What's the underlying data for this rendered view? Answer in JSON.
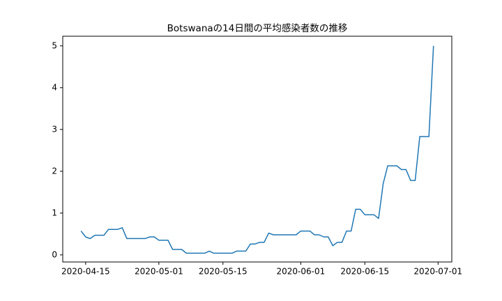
{
  "chart_data": {
    "type": "line",
    "title": "Botswanaの14日間の平均感染者数の推移",
    "x": [
      "2020-04-14",
      "2020-04-15",
      "2020-04-16",
      "2020-04-17",
      "2020-04-18",
      "2020-04-19",
      "2020-04-20",
      "2020-04-21",
      "2020-04-22",
      "2020-04-23",
      "2020-04-24",
      "2020-04-25",
      "2020-04-26",
      "2020-04-27",
      "2020-04-28",
      "2020-04-29",
      "2020-04-30",
      "2020-05-01",
      "2020-05-02",
      "2020-05-03",
      "2020-05-04",
      "2020-05-05",
      "2020-05-06",
      "2020-05-07",
      "2020-05-08",
      "2020-05-09",
      "2020-05-10",
      "2020-05-11",
      "2020-05-12",
      "2020-05-13",
      "2020-05-14",
      "2020-05-15",
      "2020-05-16",
      "2020-05-17",
      "2020-05-18",
      "2020-05-19",
      "2020-05-20",
      "2020-05-21",
      "2020-05-22",
      "2020-05-23",
      "2020-05-24",
      "2020-05-25",
      "2020-05-26",
      "2020-05-27",
      "2020-05-28",
      "2020-05-29",
      "2020-05-30",
      "2020-05-31",
      "2020-06-01",
      "2020-06-02",
      "2020-06-03",
      "2020-06-04",
      "2020-06-05",
      "2020-06-06",
      "2020-06-07",
      "2020-06-08",
      "2020-06-09",
      "2020-06-10",
      "2020-06-11",
      "2020-06-12",
      "2020-06-13",
      "2020-06-14",
      "2020-06-15",
      "2020-06-16",
      "2020-06-17",
      "2020-06-18",
      "2020-06-19",
      "2020-06-20",
      "2020-06-21",
      "2020-06-22",
      "2020-06-23",
      "2020-06-24",
      "2020-06-25",
      "2020-06-26",
      "2020-06-27",
      "2020-06-28",
      "2020-06-29",
      "2020-06-30"
    ],
    "values": [
      0.57,
      0.43,
      0.39,
      0.47,
      0.47,
      0.47,
      0.61,
      0.61,
      0.61,
      0.65,
      0.39,
      0.39,
      0.39,
      0.39,
      0.39,
      0.43,
      0.43,
      0.35,
      0.35,
      0.35,
      0.13,
      0.13,
      0.13,
      0.04,
      0.04,
      0.04,
      0.04,
      0.04,
      0.09,
      0.04,
      0.04,
      0.04,
      0.04,
      0.04,
      0.09,
      0.09,
      0.09,
      0.26,
      0.26,
      0.3,
      0.3,
      0.52,
      0.48,
      0.48,
      0.48,
      0.48,
      0.48,
      0.48,
      0.57,
      0.57,
      0.57,
      0.48,
      0.48,
      0.43,
      0.43,
      0.22,
      0.3,
      0.3,
      0.57,
      0.57,
      1.09,
      1.09,
      0.96,
      0.96,
      0.96,
      0.87,
      1.7,
      2.13,
      2.13,
      2.13,
      2.04,
      2.04,
      1.78,
      1.78,
      2.83,
      2.83,
      2.83,
      5.0
    ],
    "color": "#1f77b4",
    "xlim": [
      "2020-04-10",
      "2020-07-04"
    ],
    "xticks": [
      "2020-04-15",
      "2020-05-01",
      "2020-05-15",
      "2020-06-01",
      "2020-06-15",
      "2020-07-01"
    ],
    "ylim": [
      -0.17,
      5.23
    ],
    "yticks": [
      0,
      1,
      2,
      3,
      4,
      5
    ],
    "grid": false
  }
}
